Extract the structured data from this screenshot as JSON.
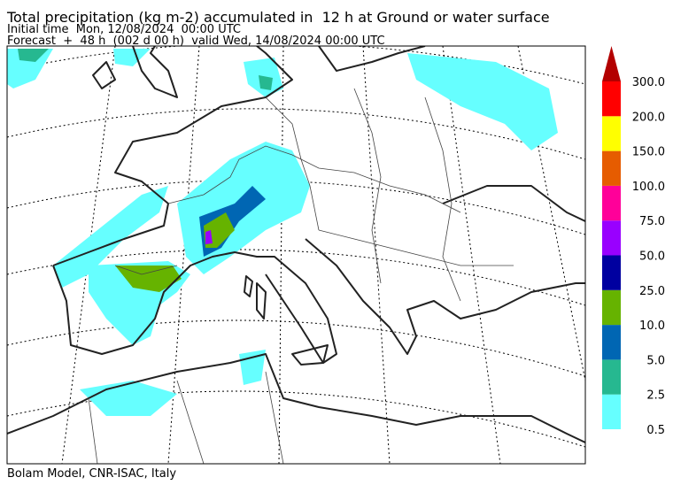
{
  "header": {
    "title": "Total precipitation (kg m-2) accumulated in  12 h at Ground or water surface",
    "initial_time": "Initial time  Mon, 12/08/2024  00:00 UTC",
    "forecast": "Forecast  +  48 h  (002 d 00 h)  valid Wed, 14/08/2024 00:00 UTC"
  },
  "colorbar": {
    "levels": [
      "0.5",
      "2.5",
      "5.0",
      "10.0",
      "25.0",
      "50.0",
      "75.0",
      "100.0",
      "150.0",
      "200.0",
      "300.0"
    ],
    "colors": [
      "#66ffff",
      "#26b890",
      "#0066b3",
      "#66b300",
      "#0000a0",
      "#9900ff",
      "#ff0099",
      "#e65c00",
      "#ffff00",
      "#ff0000",
      "#b30000"
    ]
  },
  "footer": "Bolam Model, CNR-ISAC, Italy"
}
